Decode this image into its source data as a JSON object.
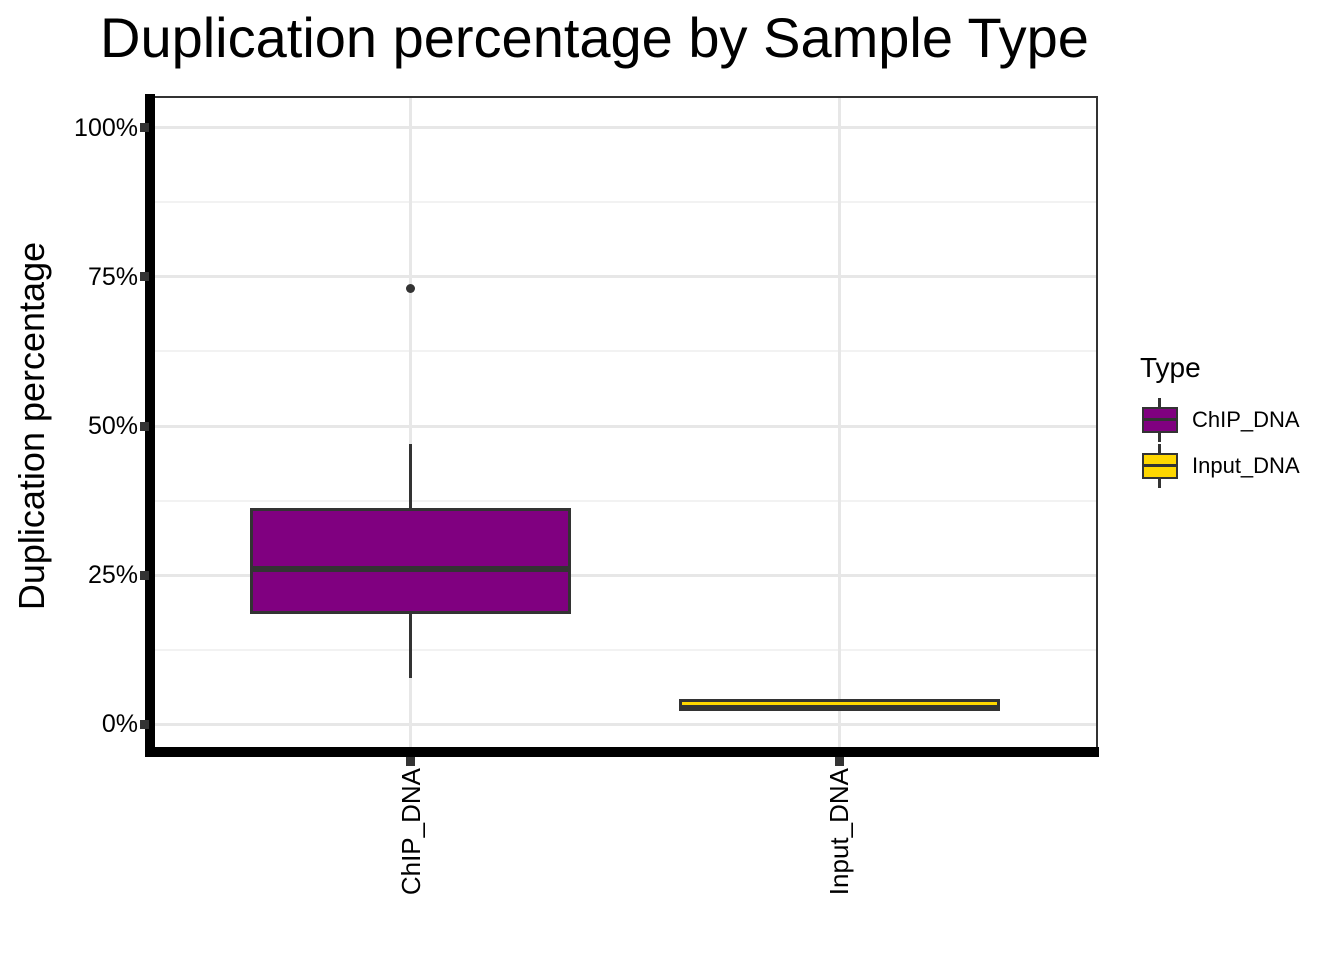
{
  "title": "Duplication percentage by Sample Type",
  "y_axis": {
    "title": "Duplication percentage",
    "tick_labels": [
      "0%",
      "25%",
      "50%",
      "75%",
      "100%"
    ],
    "tick_values": [
      0,
      25,
      50,
      75,
      100
    ],
    "minor_tick_values": [
      12.5,
      37.5,
      62.5,
      87.5
    ],
    "range": [
      -5,
      105
    ]
  },
  "x_axis": {
    "title": "",
    "categories": [
      "ChIP_DNA",
      "Input_DNA"
    ]
  },
  "legend": {
    "title": "Type",
    "entries": [
      {
        "label": "ChIP_DNA",
        "color": "#800080"
      },
      {
        "label": "Input_DNA",
        "color": "#FFD700"
      }
    ]
  },
  "chart_data": {
    "type": "boxplot",
    "title": "Duplication percentage by Sample Type",
    "xlabel": "",
    "ylabel": "Duplication percentage",
    "ylim": [
      -5,
      105
    ],
    "y_tick_values_percent": [
      0,
      25,
      50,
      75,
      100
    ],
    "grid": "horizontal major+minor, vertical major at category centers",
    "legend_position": "right",
    "legend_title": "Type",
    "categories": [
      "ChIP_DNA",
      "Input_DNA"
    ],
    "series": [
      {
        "name": "ChIP_DNA",
        "fill": "#800080",
        "whisker_low": 7.7,
        "q1": 18.7,
        "median": 26.6,
        "q3": 36.0,
        "whisker_high": 47.0,
        "outliers": [
          73.0
        ]
      },
      {
        "name": "Input_DNA",
        "fill": "#FFD700",
        "whisker_low": 2.2,
        "q1": 2.5,
        "median": 3.2,
        "q3": 4.0,
        "whisker_high": 4.3,
        "outliers": []
      }
    ]
  },
  "style": {
    "box_border_color": "#333333",
    "axis_line_color": "#000000",
    "panel_border_color": "#333333",
    "grid_major_color": "#E7E7E7",
    "grid_minor_color": "#F2F2F2",
    "tick_color": "#333333",
    "text_color": "#000000"
  }
}
